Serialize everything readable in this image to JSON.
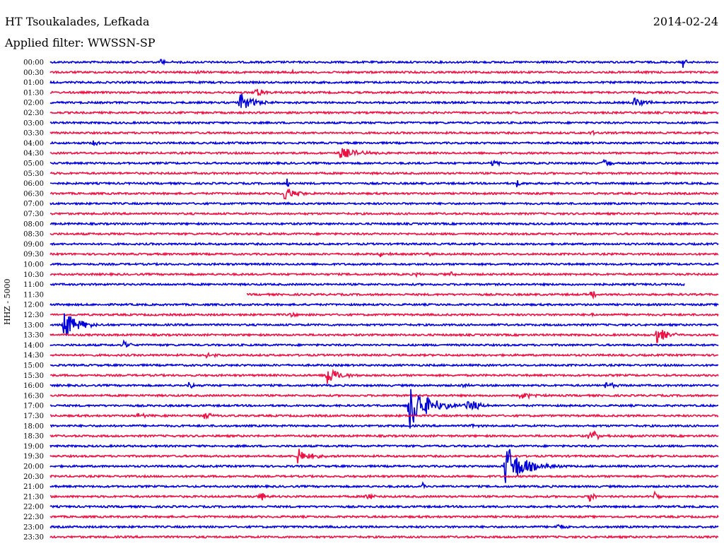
{
  "header": {
    "station": "HT Tsoukalades, Lefkada",
    "date": "2014-02-24",
    "filter": "Applied filter: WWSSN-SP"
  },
  "chart_data": {
    "type": "line",
    "title": "HT Tsoukalades, Lefkada",
    "ylabel": "HHZ - 5000",
    "colors": [
      "#0000dd",
      "#ee1144"
    ],
    "row_labels": [
      "00:00",
      "00:30",
      "01:00",
      "01:30",
      "02:00",
      "02:30",
      "03:00",
      "03:30",
      "04:00",
      "04:30",
      "05:00",
      "05:30",
      "06:00",
      "06:30",
      "07:00",
      "07:30",
      "08:00",
      "08:30",
      "09:00",
      "09:30",
      "10:00",
      "10:30",
      "11:00",
      "11:30",
      "12:00",
      "12:30",
      "13:00",
      "13:30",
      "14:00",
      "14:30",
      "15:00",
      "15:30",
      "16:00",
      "16:30",
      "17:00",
      "17:30",
      "18:00",
      "18:30",
      "19:00",
      "19:30",
      "20:00",
      "20:30",
      "21:00",
      "21:30",
      "22:00",
      "22:30",
      "23:00",
      "23:30"
    ],
    "row_span_minutes": 30,
    "gaps": [
      {
        "row": 22,
        "from_minute": 28.5,
        "to_minute": 30
      },
      {
        "row": 23,
        "from_minute": 0,
        "to_minute": 8.8
      }
    ],
    "events": [
      {
        "row": 0,
        "minute": 4.9,
        "amplitude": 5,
        "duration_minutes": 0.6
      },
      {
        "row": 0,
        "minute": 28.4,
        "amplitude": 9,
        "duration_minutes": 0.3
      },
      {
        "row": 1,
        "minute": 6.5,
        "amplitude": 3,
        "duration_minutes": 0.4
      },
      {
        "row": 1,
        "minute": 10.8,
        "amplitude": 3,
        "duration_minutes": 0.4
      },
      {
        "row": 1,
        "minute": 26.4,
        "amplitude": 3,
        "duration_minutes": 0.4
      },
      {
        "row": 3,
        "minute": 9.2,
        "amplitude": 7,
        "duration_minutes": 0.9
      },
      {
        "row": 4,
        "minute": 8.5,
        "amplitude": 14,
        "duration_minutes": 1.2
      },
      {
        "row": 4,
        "minute": 26.2,
        "amplitude": 8,
        "duration_minutes": 1.0
      },
      {
        "row": 7,
        "minute": 24.2,
        "amplitude": 4,
        "duration_minutes": 0.5
      },
      {
        "row": 8,
        "minute": 1.9,
        "amplitude": 6,
        "duration_minutes": 0.7
      },
      {
        "row": 9,
        "minute": 13.0,
        "amplitude": 8,
        "duration_minutes": 1.6
      },
      {
        "row": 10,
        "minute": 19.8,
        "amplitude": 5,
        "duration_minutes": 0.6
      },
      {
        "row": 10,
        "minute": 24.8,
        "amplitude": 7,
        "duration_minutes": 0.8
      },
      {
        "row": 12,
        "minute": 10.6,
        "amplitude": 9,
        "duration_minutes": 0.3
      },
      {
        "row": 12,
        "minute": 20.9,
        "amplitude": 9,
        "duration_minutes": 0.3
      },
      {
        "row": 13,
        "minute": 10.5,
        "amplitude": 11,
        "duration_minutes": 1.0
      },
      {
        "row": 19,
        "minute": 14.8,
        "amplitude": 4,
        "duration_minutes": 0.7
      },
      {
        "row": 19,
        "minute": 16.9,
        "amplitude": 3,
        "duration_minutes": 0.4
      },
      {
        "row": 21,
        "minute": 16.4,
        "amplitude": 4,
        "duration_minutes": 0.5
      },
      {
        "row": 21,
        "minute": 18.0,
        "amplitude": 5,
        "duration_minutes": 0.2
      },
      {
        "row": 23,
        "minute": 24.3,
        "amplitude": 8,
        "duration_minutes": 0.3
      },
      {
        "row": 25,
        "minute": 10.8,
        "amplitude": 4,
        "duration_minutes": 0.4
      },
      {
        "row": 25,
        "minute": 24.3,
        "amplitude": 3,
        "duration_minutes": 0.4
      },
      {
        "row": 26,
        "minute": 0.6,
        "amplitude": 22,
        "duration_minutes": 1.2
      },
      {
        "row": 27,
        "minute": 27.2,
        "amplitude": 14,
        "duration_minutes": 1.0
      },
      {
        "row": 28,
        "minute": 3.3,
        "amplitude": 6,
        "duration_minutes": 0.6
      },
      {
        "row": 29,
        "minute": 7.0,
        "amplitude": 6,
        "duration_minutes": 0.6
      },
      {
        "row": 31,
        "minute": 12.4,
        "amplitude": 16,
        "duration_minutes": 1.0
      },
      {
        "row": 32,
        "minute": 6.2,
        "amplitude": 5,
        "duration_minutes": 0.5
      },
      {
        "row": 32,
        "minute": 18.5,
        "amplitude": 4,
        "duration_minutes": 0.4
      },
      {
        "row": 32,
        "minute": 24.9,
        "amplitude": 8,
        "duration_minutes": 0.6
      },
      {
        "row": 33,
        "minute": 21.1,
        "amplitude": 9,
        "duration_minutes": 0.7
      },
      {
        "row": 34,
        "minute": 16.1,
        "amplitude": 38,
        "duration_minutes": 1.6
      },
      {
        "row": 34,
        "minute": 18.7,
        "amplitude": 10,
        "duration_minutes": 1.0
      },
      {
        "row": 35,
        "minute": 3.9,
        "amplitude": 5,
        "duration_minutes": 0.6
      },
      {
        "row": 35,
        "minute": 6.9,
        "amplitude": 6,
        "duration_minutes": 0.6
      },
      {
        "row": 36,
        "minute": 18.9,
        "amplitude": 3,
        "duration_minutes": 0.4
      },
      {
        "row": 37,
        "minute": 24.2,
        "amplitude": 10,
        "duration_minutes": 0.8
      },
      {
        "row": 37,
        "minute": 26.1,
        "amplitude": 4,
        "duration_minutes": 0.4
      },
      {
        "row": 39,
        "minute": 11.1,
        "amplitude": 12,
        "duration_minutes": 1.0
      },
      {
        "row": 40,
        "minute": 20.4,
        "amplitude": 34,
        "duration_minutes": 1.6
      },
      {
        "row": 42,
        "minute": 16.7,
        "amplitude": 6,
        "duration_minutes": 0.3
      },
      {
        "row": 43,
        "minute": 9.4,
        "amplitude": 11,
        "duration_minutes": 0.4
      },
      {
        "row": 43,
        "minute": 14.2,
        "amplitude": 11,
        "duration_minutes": 0.4
      },
      {
        "row": 43,
        "minute": 24.2,
        "amplitude": 10,
        "duration_minutes": 0.4
      },
      {
        "row": 43,
        "minute": 27.1,
        "amplitude": 10,
        "duration_minutes": 0.4
      },
      {
        "row": 46,
        "minute": 22.7,
        "amplitude": 5,
        "duration_minutes": 0.6
      }
    ]
  }
}
